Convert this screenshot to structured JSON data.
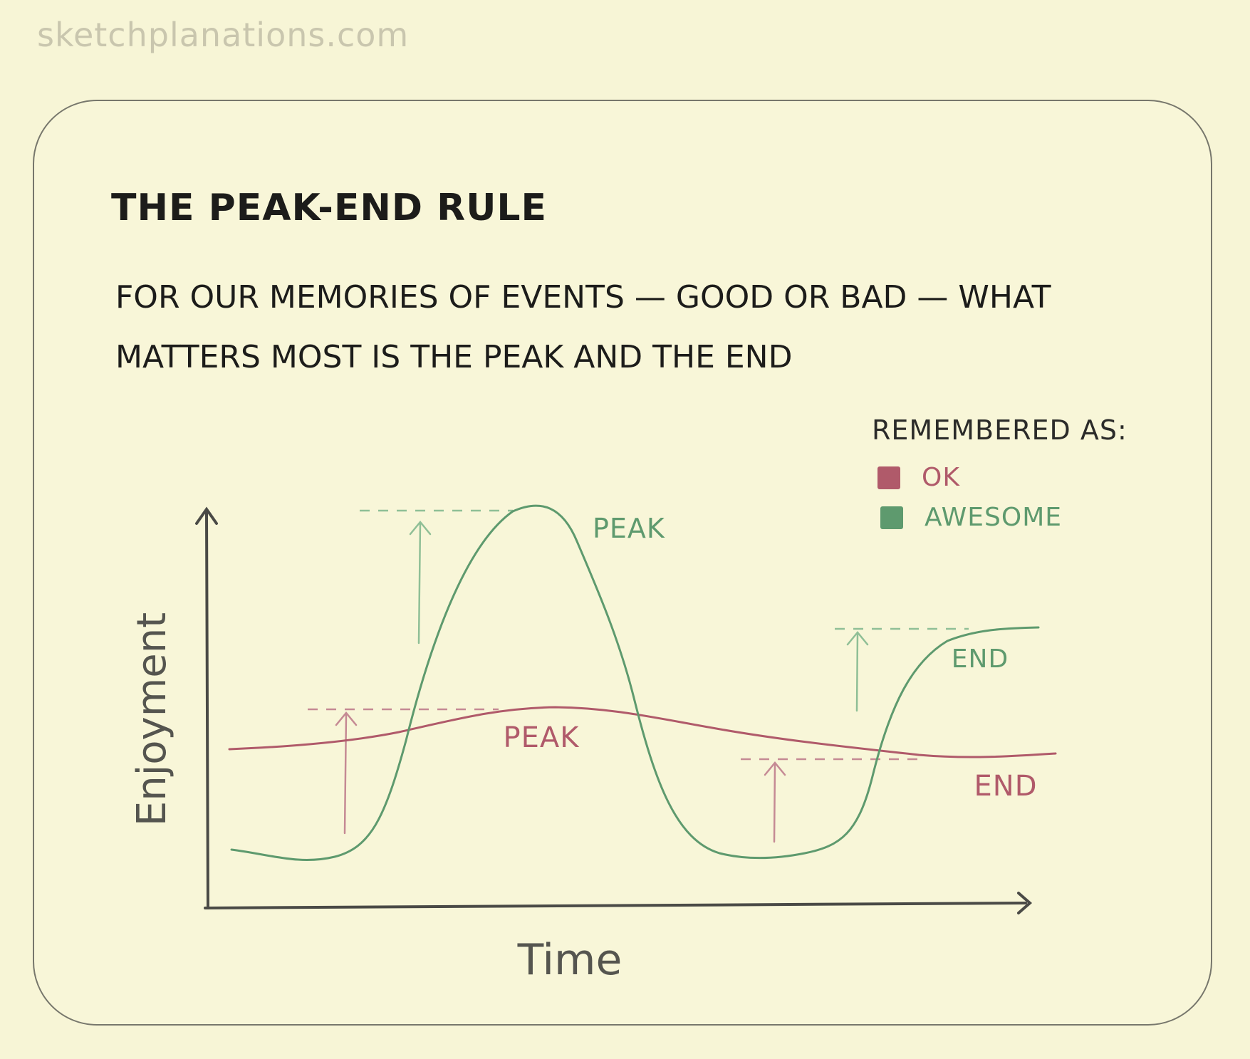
{
  "watermark": "sketchplanations.com",
  "title": "THE PEAK-END RULE",
  "subtitle": "FOR OUR MEMORIES OF EVENTS — GOOD OR BAD — WHAT MATTERS MOST IS THE PEAK AND THE END",
  "legend": {
    "title": "REMEMBERED AS:",
    "items": [
      {
        "label": "OK",
        "color": "#b05a6a"
      },
      {
        "label": "AWESOME",
        "color": "#5e9a6e"
      }
    ]
  },
  "axes": {
    "y_label": "Enjoyment",
    "x_label": "Time"
  },
  "annotations": {
    "green_peak": "PEAK",
    "green_end": "END",
    "red_peak": "PEAK",
    "red_end": "END"
  },
  "colors": {
    "ok": "#b05a6a",
    "awesome": "#5e9a6e",
    "axis": "#4a4a46",
    "card_border": "#77776c",
    "background": "#f7f5d6"
  }
}
